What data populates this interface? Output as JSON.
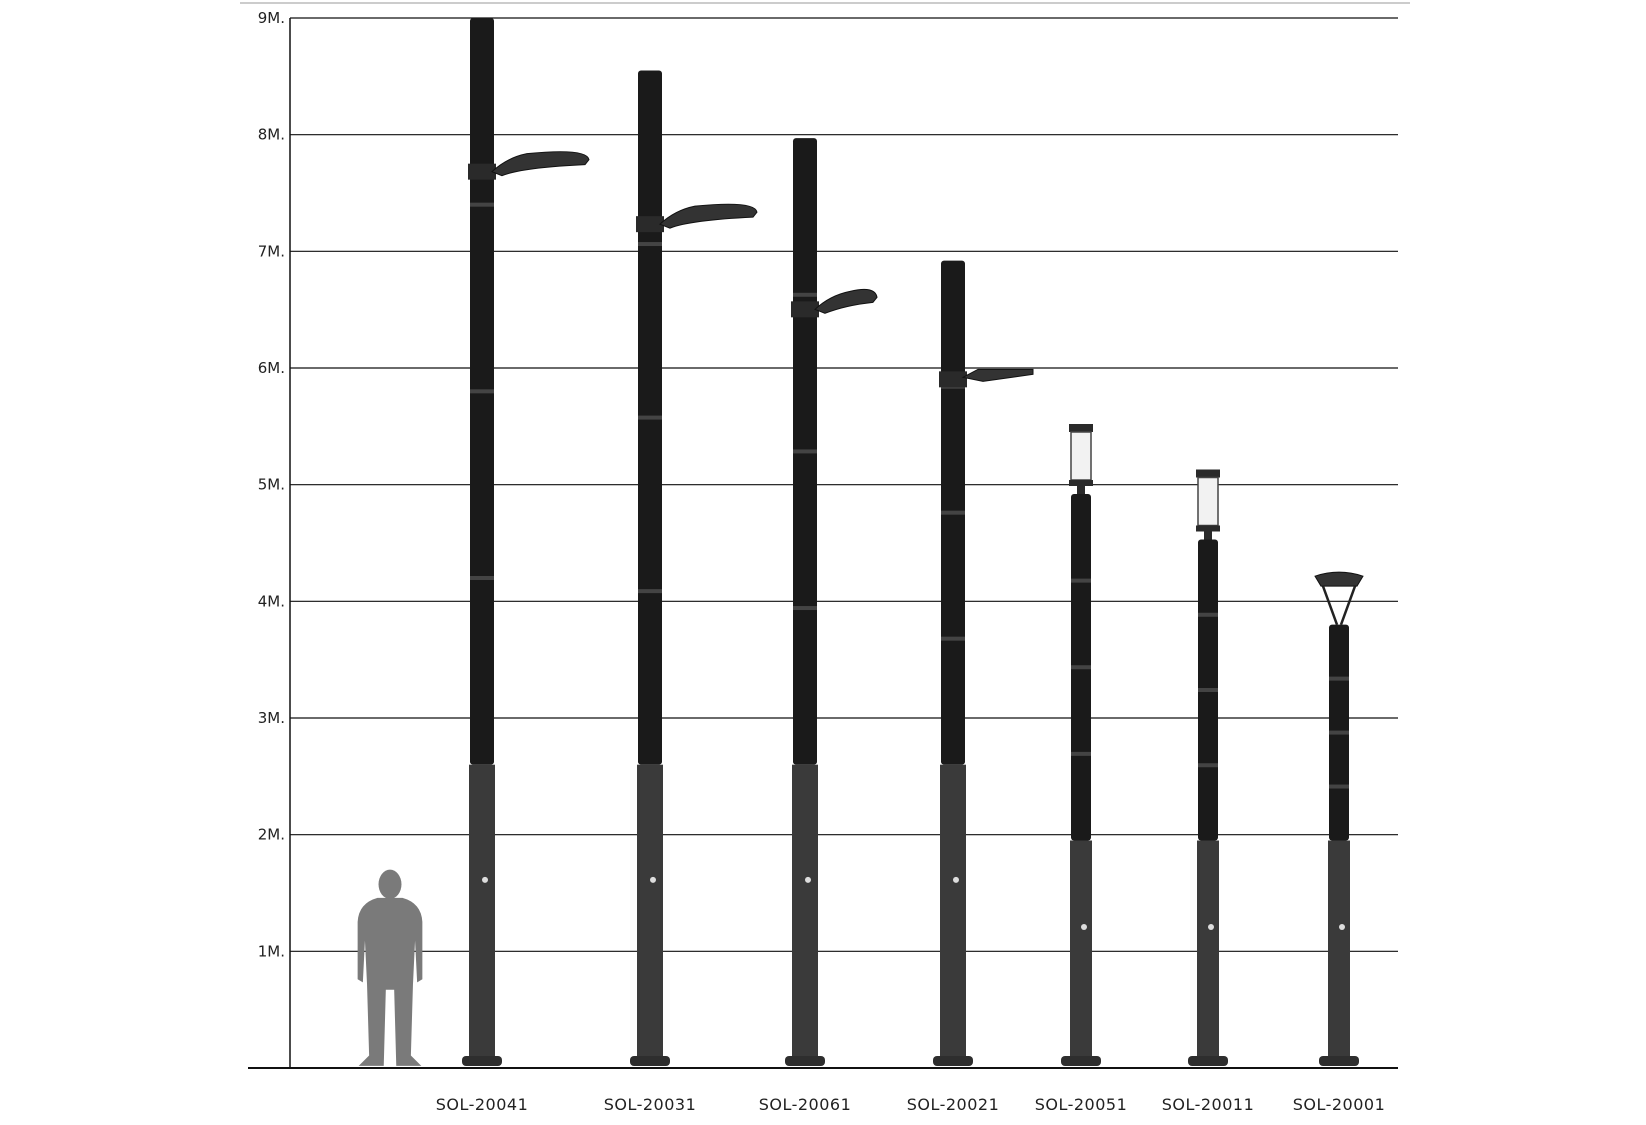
{
  "chart_data": {
    "type": "bar",
    "ylabel": "",
    "xlabel": "",
    "title": "",
    "y_ticks": [
      "1M.",
      "2M.",
      "3M.",
      "4M.",
      "5M.",
      "6M.",
      "7M.",
      "8M.",
      "9M."
    ],
    "y_tick_values": [
      1,
      2,
      3,
      4,
      5,
      6,
      7,
      8,
      9
    ],
    "ylim": [
      0,
      9
    ],
    "grid": true,
    "categories": [
      "SOL-20041",
      "SOL-20031",
      "SOL-20061",
      "SOL-20021",
      "SOL-20051",
      "SOL-20011",
      "SOL-20001"
    ],
    "values": [
      9.0,
      8.55,
      7.97,
      6.92,
      5.52,
      5.13,
      4.25
    ],
    "lamp_types": [
      "cobra",
      "cobra",
      "cobra-small",
      "flat",
      "lantern",
      "lantern",
      "canopy"
    ],
    "person_height": 1.7
  },
  "colors": {
    "pole": "#1a1a1a",
    "pole_base": "#3a3a3a",
    "grid": "#111111",
    "person": "#7a7a7a"
  },
  "icons": {
    "person": "person-silhouette-icon"
  }
}
